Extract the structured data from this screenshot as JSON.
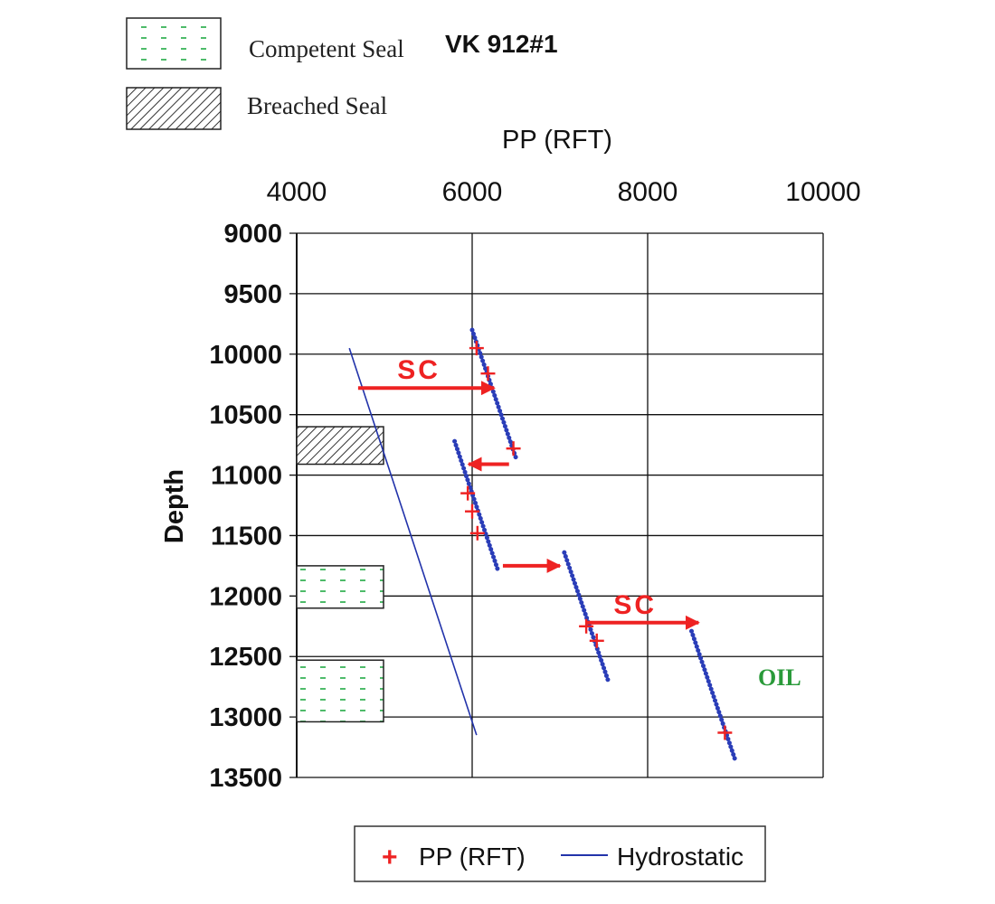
{
  "chart_data": {
    "type": "scatter",
    "title": "VK 912#1",
    "xlabel": "PP (RFT)",
    "ylabel": "Depth",
    "xlim": [
      4000,
      10000
    ],
    "ylim": [
      9000,
      13500
    ],
    "y_inverted": true,
    "x_axis_position": "top",
    "x_ticks": [
      "4000",
      "6000",
      "8000",
      "10000"
    ],
    "y_ticks": [
      "9000",
      "9500",
      "10000",
      "10500",
      "11000",
      "11500",
      "12000",
      "12500",
      "13000",
      "13500"
    ],
    "grid": true,
    "seal_legend": [
      {
        "label": "Competent Seal",
        "pattern": "dashed-green"
      },
      {
        "label": "Breached Seal",
        "pattern": "hatched"
      }
    ],
    "series": [
      {
        "name": "PP (RFT)",
        "marker": "+",
        "color": "#ee2222",
        "points": [
          [
            6050,
            9950
          ],
          [
            6180,
            10160
          ],
          [
            6470,
            10780
          ],
          [
            5950,
            11150
          ],
          [
            6000,
            11300
          ],
          [
            6060,
            11480
          ],
          [
            7300,
            12250
          ],
          [
            7420,
            12370
          ],
          [
            8880,
            13130
          ]
        ]
      },
      {
        "name": "Hydrostatic",
        "color": "#2233aa",
        "points": [
          [
            4600,
            9950
          ],
          [
            6050,
            13150
          ]
        ]
      }
    ],
    "gradients": [
      {
        "color": "#2a3db8",
        "points": [
          [
            6000,
            9800
          ],
          [
            6500,
            10860
          ]
        ]
      },
      {
        "color": "#2a3db8",
        "points": [
          [
            5800,
            10720
          ],
          [
            6300,
            11800
          ]
        ]
      },
      {
        "color": "#2a3db8",
        "points": [
          [
            7050,
            11640
          ],
          [
            7550,
            12700
          ]
        ]
      },
      {
        "color": "#2a3db8",
        "points": [
          [
            8500,
            12290
          ],
          [
            9000,
            13360
          ]
        ]
      }
    ],
    "arrows": [
      {
        "from": [
          4700,
          10280
        ],
        "to": [
          6250,
          10280
        ],
        "label": "SC"
      },
      {
        "from": [
          6420,
          10910
        ],
        "to": [
          5960,
          10910
        ],
        "label": ""
      },
      {
        "from": [
          6350,
          11750
        ],
        "to": [
          7000,
          11750
        ],
        "label": ""
      },
      {
        "from": [
          7300,
          12220
        ],
        "to": [
          8580,
          12220
        ],
        "label": "SC"
      }
    ],
    "seal_zones": [
      {
        "type": "breached",
        "depth_range": [
          10600,
          10910
        ]
      },
      {
        "type": "competent",
        "depth_range": [
          11750,
          12100
        ]
      },
      {
        "type": "competent",
        "depth_range": [
          12530,
          13040
        ]
      }
    ],
    "annotations": [
      {
        "text": "OIL",
        "x": 9800,
        "y": 12700
      }
    ],
    "legend": {
      "placement": "bottom",
      "entries": [
        "PP (RFT)",
        "Hydrostatic"
      ]
    }
  }
}
